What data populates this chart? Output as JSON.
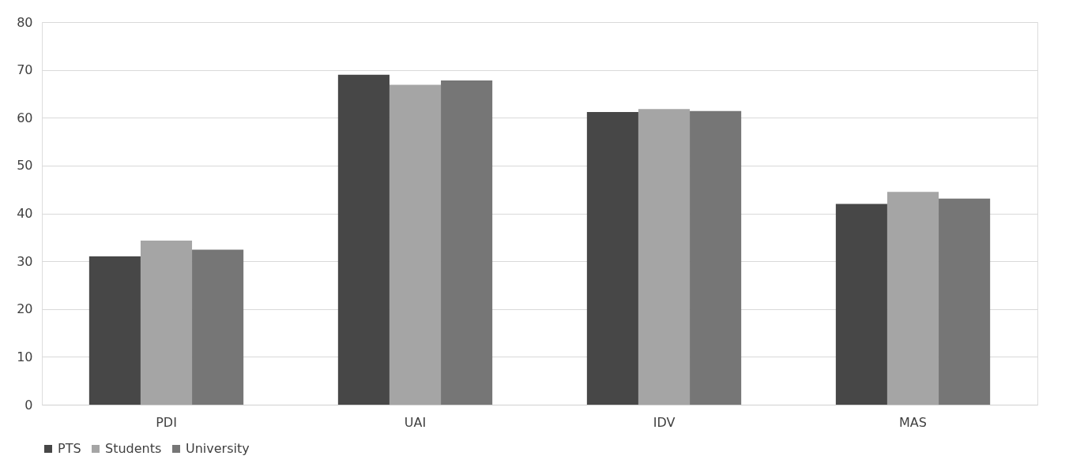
{
  "chart_data": {
    "type": "bar",
    "categories": [
      "PDI",
      "UAI",
      "IDV",
      "MAS"
    ],
    "series": [
      {
        "name": "PTS",
        "color": "#474747",
        "values": [
          31.0,
          69.0,
          61.2,
          42.0
        ]
      },
      {
        "name": "Students",
        "color": "#a5a5a5",
        "values": [
          34.3,
          66.9,
          61.8,
          44.5
        ]
      },
      {
        "name": "University",
        "color": "#767676",
        "values": [
          32.4,
          67.8,
          61.4,
          43.1
        ]
      }
    ],
    "ylim": [
      0,
      80
    ],
    "yticks": [
      0,
      10,
      20,
      30,
      40,
      50,
      60,
      70,
      80
    ],
    "grid": "y",
    "legend": "bottom"
  }
}
